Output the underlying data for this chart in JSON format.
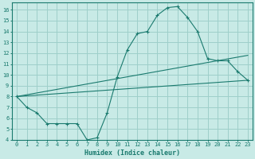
{
  "title": "",
  "xlabel": "Humidex (Indice chaleur)",
  "bg_color": "#c8eae6",
  "grid_color": "#9ecfca",
  "line_color": "#1a7a6e",
  "xlim": [
    -0.5,
    23.5
  ],
  "ylim": [
    4,
    16.7
  ],
  "xticks": [
    0,
    1,
    2,
    3,
    4,
    5,
    6,
    7,
    8,
    9,
    10,
    11,
    12,
    13,
    14,
    15,
    16,
    17,
    18,
    19,
    20,
    21,
    22,
    23
  ],
  "yticks": [
    4,
    5,
    6,
    7,
    8,
    9,
    10,
    11,
    12,
    13,
    14,
    15,
    16
  ],
  "series_main": {
    "x": [
      0,
      1,
      2,
      3,
      4,
      5,
      6,
      7,
      8,
      9,
      10,
      11,
      12,
      13,
      14,
      15,
      16,
      17,
      18,
      19,
      20,
      21,
      22,
      23
    ],
    "y": [
      8.0,
      7.0,
      6.5,
      5.5,
      5.5,
      5.5,
      5.5,
      4.0,
      4.2,
      6.5,
      9.8,
      12.3,
      13.8,
      14.0,
      15.5,
      16.2,
      16.3,
      15.3,
      14.0,
      11.5,
      11.3,
      11.3,
      10.3,
      9.5
    ]
  },
  "series_line1": {
    "x": [
      0,
      23
    ],
    "y": [
      8.0,
      9.5
    ]
  },
  "series_line2": {
    "x": [
      0,
      23
    ],
    "y": [
      8.0,
      11.8
    ]
  },
  "tick_fontsize": 5.0,
  "xlabel_fontsize": 6.0
}
